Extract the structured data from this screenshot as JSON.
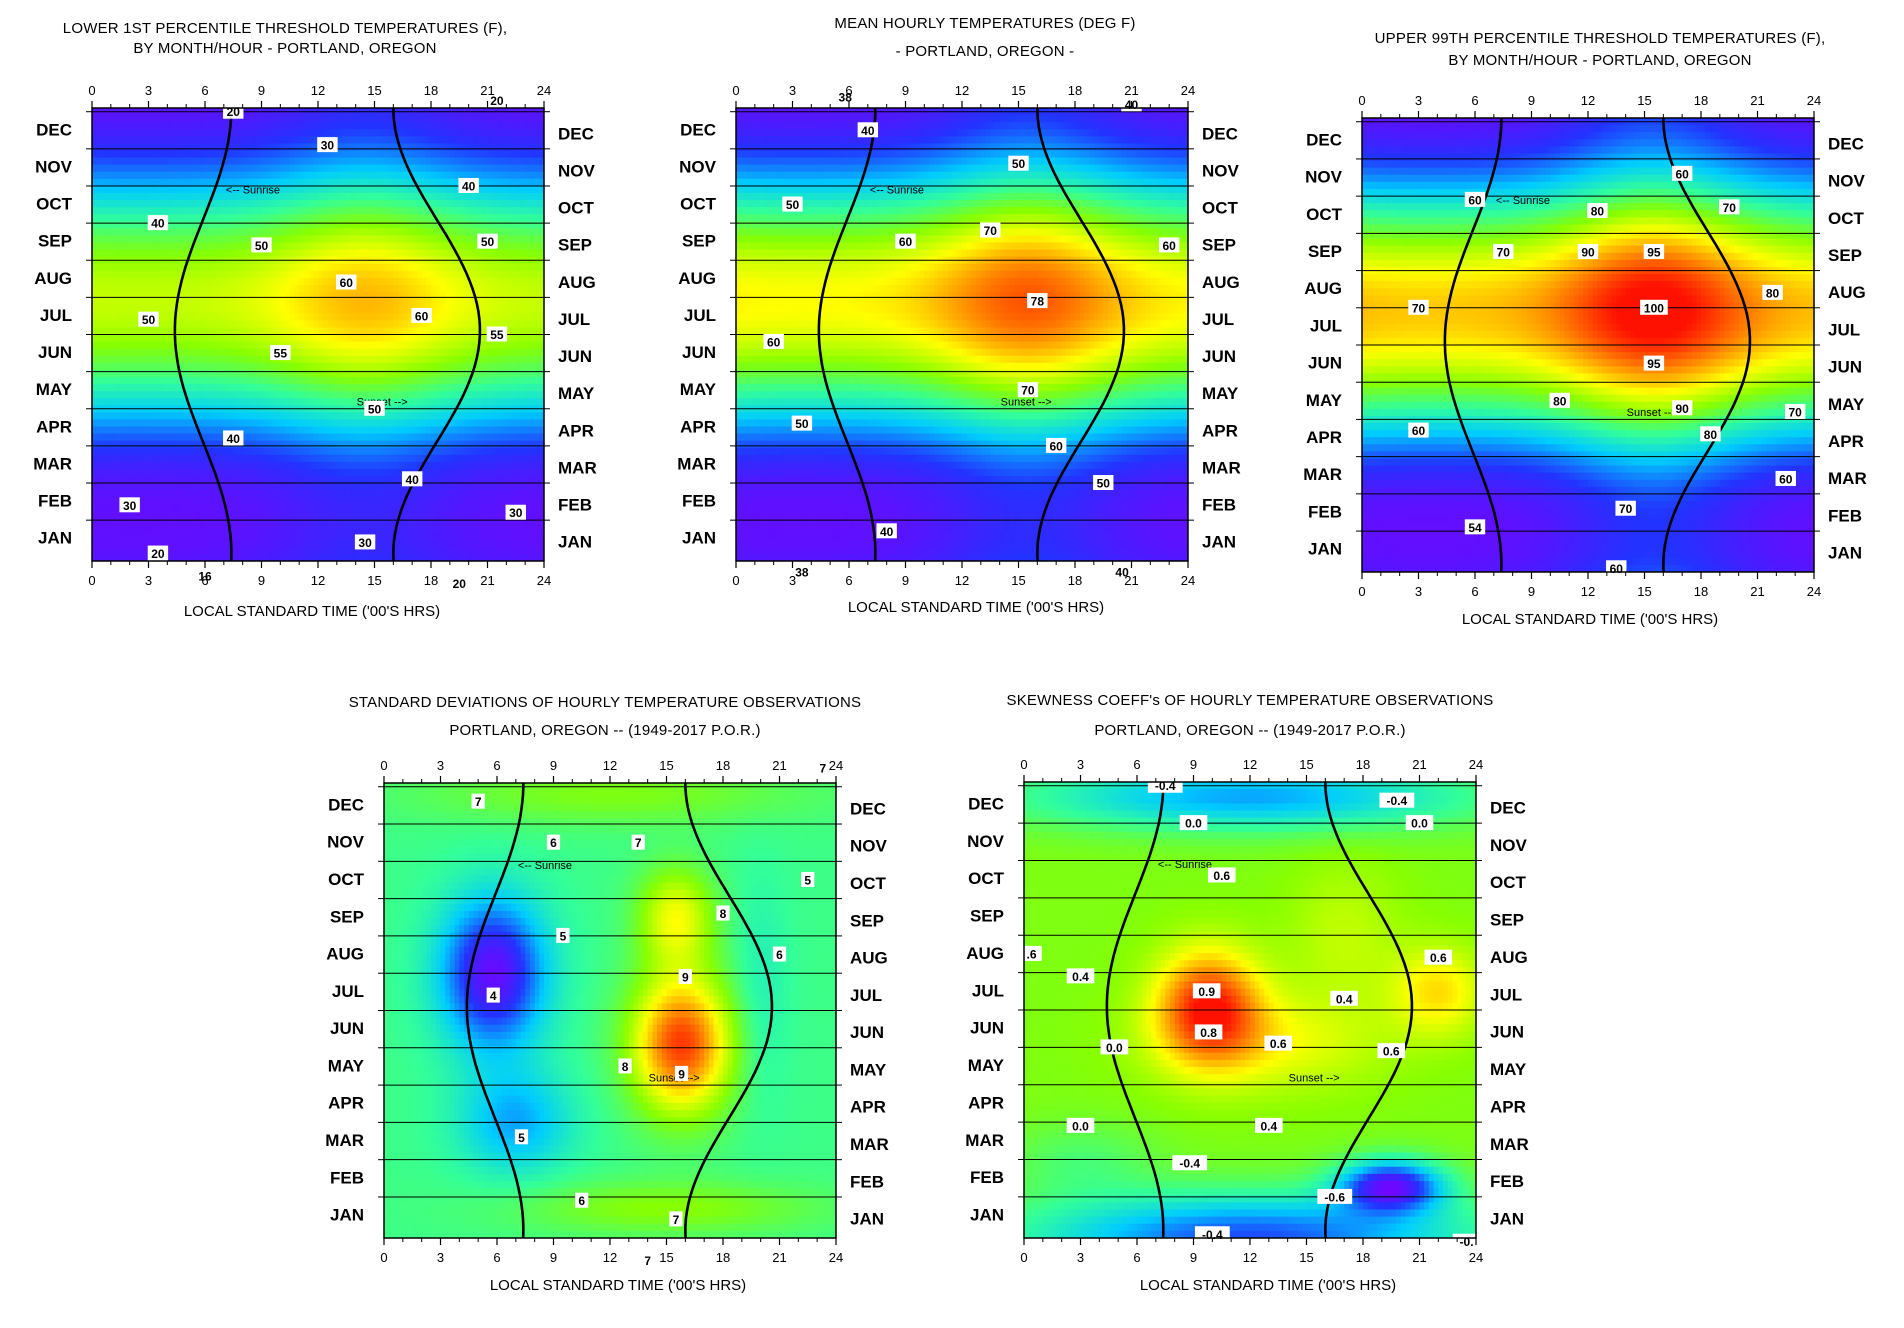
{
  "months": [
    "JAN",
    "FEB",
    "MAR",
    "APR",
    "MAY",
    "JUN",
    "JUL",
    "AUG",
    "SEP",
    "OCT",
    "NOV",
    "DEC"
  ],
  "hour_ticks": [
    "0",
    "3",
    "6",
    "9",
    "12",
    "15",
    "18",
    "21",
    "24"
  ],
  "x_axis_label": "LOCAL STANDARD TIME ('00'S HRS)",
  "sunrise_label": "<-- Sunrise",
  "sunset_label": "Sunset -->",
  "palette": [
    "#7a00ff",
    "#2233ff",
    "#00ccff",
    "#33ff99",
    "#88ff00",
    "#ffff00",
    "#ff8800",
    "#ff1100"
  ],
  "chart_data": [
    {
      "id": "p1",
      "type": "heatmap",
      "title": [
        "LOWER 1ST PERCENTILE THRESHOLD TEMPERATURES (F),",
        "BY MONTH/HOUR -  PORTLAND, OREGON"
      ],
      "xlabel": "LOCAL STANDARD TIME ('00'S HRS)",
      "x_range": [
        0,
        24
      ],
      "model": "temp",
      "base": 16,
      "amp_season": 30,
      "amp_diurnal": 8,
      "peak_hour": 14.5,
      "vmin": 14,
      "vmax": 64,
      "contour_labels": [
        {
          "text": "20",
          "h": 7.5,
          "m": 11.5
        },
        {
          "text": "20",
          "h": 21.5,
          "m": 11.8
        },
        {
          "text": "30",
          "h": 12.5,
          "m": 10.6
        },
        {
          "text": "40",
          "h": 20,
          "m": 9.5
        },
        {
          "text": "40",
          "h": 3.5,
          "m": 8.5
        },
        {
          "text": "50",
          "h": 9,
          "m": 7.9
        },
        {
          "text": "50",
          "h": 21,
          "m": 8
        },
        {
          "text": "60",
          "h": 13.5,
          "m": 6.9
        },
        {
          "text": "60",
          "h": 17.5,
          "m": 6
        },
        {
          "text": "50",
          "h": 3,
          "m": 5.9
        },
        {
          "text": "55",
          "h": 10,
          "m": 5
        },
        {
          "text": "55",
          "h": 21.5,
          "m": 5.5
        },
        {
          "text": "50",
          "h": 15,
          "m": 3.5
        },
        {
          "text": "40",
          "h": 7.5,
          "m": 2.7
        },
        {
          "text": "40",
          "h": 17,
          "m": 1.6
        },
        {
          "text": "30",
          "h": 2,
          "m": 0.9
        },
        {
          "text": "30",
          "h": 22.5,
          "m": 0.7
        },
        {
          "text": "30",
          "h": 14.5,
          "m": -0.1
        },
        {
          "text": "20",
          "h": 3.5,
          "m": -0.4
        },
        {
          "text": "16",
          "h": 6,
          "m": -1.0
        },
        {
          "text": "20",
          "h": 19.5,
          "m": -1.2
        }
      ]
    },
    {
      "id": "p2",
      "type": "heatmap",
      "title": [
        "MEAN HOURLY TEMPERATURES (DEG F)",
        "- PORTLAND, OREGON -"
      ],
      "xlabel": "LOCAL STANDARD TIME ('00'S HRS)",
      "x_range": [
        0,
        24
      ],
      "model": "temp",
      "base": 35,
      "amp_season": 33,
      "amp_diurnal": 10,
      "peak_hour": 15.5,
      "vmin": 33,
      "vmax": 82,
      "contour_labels": [
        {
          "text": "38",
          "h": 5.8,
          "m": 11.9
        },
        {
          "text": "40",
          "h": 7,
          "m": 11
        },
        {
          "text": "40",
          "h": 21,
          "m": 11.7
        },
        {
          "text": "50",
          "h": 15,
          "m": 10.1
        },
        {
          "text": "50",
          "h": 3,
          "m": 9
        },
        {
          "text": "60",
          "h": 9,
          "m": 8
        },
        {
          "text": "60",
          "h": 23,
          "m": 7.9
        },
        {
          "text": "70",
          "h": 13.5,
          "m": 8.3
        },
        {
          "text": "78",
          "h": 16,
          "m": 6.4
        },
        {
          "text": "60",
          "h": 2,
          "m": 5.3
        },
        {
          "text": "70",
          "h": 15.5,
          "m": 4
        },
        {
          "text": "60",
          "h": 17,
          "m": 2.5
        },
        {
          "text": "50",
          "h": 3.5,
          "m": 3.1
        },
        {
          "text": "50",
          "h": 19.5,
          "m": 1.5
        },
        {
          "text": "40",
          "h": 8,
          "m": 0.2
        },
        {
          "text": "38",
          "h": 3.5,
          "m": -0.9
        },
        {
          "text": "40",
          "h": 20.5,
          "m": -0.9
        }
      ]
    },
    {
      "id": "p3",
      "type": "heatmap",
      "title": [
        "UPPER 99TH PERCENTILE THRESHOLD TEMPERATURES (F),",
        "BY MONTH/HOUR -  PORTLAND, OREGON"
      ],
      "xlabel": "LOCAL STANDARD TIME ('00'S HRS)",
      "x_range": [
        0,
        24
      ],
      "model": "temp",
      "base": 52,
      "amp_season": 40,
      "amp_diurnal": 14,
      "peak_hour": 15.5,
      "vmin": 50,
      "vmax": 104,
      "contour_labels": [
        {
          "text": "60",
          "h": 17,
          "m": 10.1
        },
        {
          "text": "60",
          "h": 6,
          "m": 9.4
        },
        {
          "text": "70",
          "h": 19.5,
          "m": 9.2
        },
        {
          "text": "80",
          "h": 12.5,
          "m": 9.1
        },
        {
          "text": "70",
          "h": 7.5,
          "m": 8
        },
        {
          "text": "90",
          "h": 12,
          "m": 8
        },
        {
          "text": "95",
          "h": 15.5,
          "m": 8
        },
        {
          "text": "80",
          "h": 21.8,
          "m": 6.9
        },
        {
          "text": "70",
          "h": 3,
          "m": 6.5
        },
        {
          "text": "100",
          "h": 15.5,
          "m": 6.5
        },
        {
          "text": "95",
          "h": 15.5,
          "m": 5
        },
        {
          "text": "80",
          "h": 10.5,
          "m": 4
        },
        {
          "text": "90",
          "h": 17,
          "m": 3.8
        },
        {
          "text": "70",
          "h": 23,
          "m": 3.7
        },
        {
          "text": "80",
          "h": 18.5,
          "m": 3.1
        },
        {
          "text": "60",
          "h": 3,
          "m": 3.2
        },
        {
          "text": "60",
          "h": 22.5,
          "m": 1.9
        },
        {
          "text": "70",
          "h": 14,
          "m": 1.1
        },
        {
          "text": "54",
          "h": 6,
          "m": 0.6
        },
        {
          "text": "60",
          "h": 13.5,
          "m": -0.5
        }
      ]
    },
    {
      "id": "p4",
      "type": "heatmap",
      "title": [
        "STANDARD DEVIATIONS OF HOURLY TEMPERATURE OBSERVATIONS",
        "PORTLAND, OREGON -- (1949-2017 P.O.R.)"
      ],
      "xlabel": "LOCAL STANDARD TIME ('00'S HRS)",
      "x_range": [
        0,
        24
      ],
      "model": "stdev",
      "vmin": 3.5,
      "vmax": 9.8,
      "contour_labels": [
        {
          "text": "7",
          "h": 23.3,
          "m": 12
        },
        {
          "text": "7",
          "h": 5,
          "m": 11.1
        },
        {
          "text": "6",
          "h": 9,
          "m": 10.0
        },
        {
          "text": "7",
          "h": 13.5,
          "m": 10.0
        },
        {
          "text": "5",
          "h": 22.5,
          "m": 9
        },
        {
          "text": "8",
          "h": 18,
          "m": 8.1
        },
        {
          "text": "5",
          "h": 9.5,
          "m": 7.5
        },
        {
          "text": "6",
          "h": 21,
          "m": 7.0
        },
        {
          "text": "4",
          "h": 5.8,
          "m": 5.9
        },
        {
          "text": "9",
          "h": 16,
          "m": 6.4
        },
        {
          "text": "8",
          "h": 12.8,
          "m": 4.0
        },
        {
          "text": "9",
          "h": 15.8,
          "m": 3.8
        },
        {
          "text": "5",
          "h": 7.3,
          "m": 2.1
        },
        {
          "text": "6",
          "h": 10.5,
          "m": 0.4
        },
        {
          "text": "7",
          "h": 15.5,
          "m": -0.1
        },
        {
          "text": "7",
          "h": 14,
          "m": -1.2
        }
      ]
    },
    {
      "id": "p5",
      "type": "heatmap",
      "title": [
        "SKEWNESS COEFF's OF HOURLY TEMPERATURE OBSERVATIONS",
        "PORTLAND, OREGON -- (1949-2017 P.O.R.)"
      ],
      "xlabel": "LOCAL STANDARD TIME ('00'S HRS)",
      "x_range": [
        0,
        24
      ],
      "model": "skew",
      "vmin": -0.75,
      "vmax": 1.05,
      "contour_labels": [
        {
          "text": "-0.4",
          "h": 7.5,
          "m": 11.5
        },
        {
          "text": "-0.4",
          "h": 19.8,
          "m": 11.1
        },
        {
          "text": "0.0",
          "h": 9,
          "m": 10.5
        },
        {
          "text": "0.0",
          "h": 21,
          "m": 10.5
        },
        {
          "text": "0.6",
          "h": 10.5,
          "m": 9.1
        },
        {
          ".6": "",
          "text": ".6",
          "h": 0.4,
          "m": 7.0
        },
        {
          "text": "0.4",
          "h": 3,
          "m": 6.4
        },
        {
          "text": "0.6",
          "h": 22,
          "m": 6.9
        },
        {
          "text": "0.9",
          "h": 9.7,
          "m": 6.0
        },
        {
          "text": "0.4",
          "h": 17,
          "m": 5.8
        },
        {
          "text": "0.8",
          "h": 9.8,
          "m": 4.9
        },
        {
          "text": "0.0",
          "h": 4.8,
          "m": 4.5
        },
        {
          "text": "0.6",
          "h": 13.5,
          "m": 4.6
        },
        {
          "text": "0.6",
          "h": 19.5,
          "m": 4.4
        },
        {
          "text": "0.0",
          "h": 3,
          "m": 2.4
        },
        {
          "text": "0.4",
          "h": 13,
          "m": 2.4
        },
        {
          "text": "-0.4",
          "h": 8.8,
          "m": 1.4
        },
        {
          "text": "-0.6",
          "h": 16.5,
          "m": 0.5
        },
        {
          "text": "-0.4",
          "h": 10,
          "m": -0.5
        },
        {
          "text": "-0.",
          "h": 23.5,
          "m": -0.7
        }
      ]
    }
  ]
}
